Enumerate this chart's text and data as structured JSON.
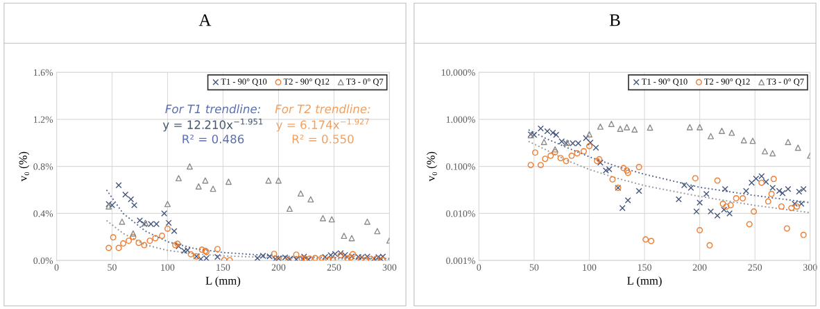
{
  "chart_data": [
    {
      "type": "scatter",
      "title": "A",
      "xlabel": "L (mm)",
      "ylabel": "v₀ (%)",
      "xlim": [
        0,
        300
      ],
      "xticks": [
        0,
        50,
        100,
        150,
        200,
        250,
        300
      ],
      "ylim": [
        0,
        1.6
      ],
      "yticks": [
        {
          "value": 0,
          "label": "0.0%"
        },
        {
          "value": 0.4,
          "label": "0.4%"
        },
        {
          "value": 0.8,
          "label": "0.8%"
        },
        {
          "value": 1.2,
          "label": "1.2%"
        },
        {
          "value": 1.6,
          "label": "1.6%"
        }
      ],
      "grid": true,
      "legend": "top right",
      "annotations": [
        "For T1 trendline:",
        "y = 12.210x$^{−1.951}$",
        "R² = 0.486",
        "For T2 trendline:",
        "y = 6.174x$^{−1.927}$",
        "R² = 0.550"
      ],
      "series": [
        {
          "name": "T1 - 90° Q10",
          "marker": "cross",
          "color": "#44547c",
          "x": [
            47,
            50,
            56,
            62,
            67,
            70,
            75,
            79,
            85,
            90,
            97,
            101,
            106,
            110,
            115,
            118,
            126,
            130,
            135,
            145,
            181,
            186,
            192,
            197,
            200,
            206,
            210,
            216,
            222,
            223,
            227,
            242,
            247,
            251,
            256,
            260,
            266,
            272,
            275,
            280,
            286,
            290,
            292,
            294
          ],
          "values": [
            0.48,
            0.47,
            0.64,
            0.56,
            0.52,
            0.47,
            0.34,
            0.31,
            0.31,
            0.31,
            0.4,
            0.32,
            0.25,
            0.12,
            0.082,
            0.087,
            0.035,
            0.013,
            0.019,
            0.03,
            0.02,
            0.04,
            0.035,
            0.011,
            0.017,
            0.026,
            0.011,
            0.009,
            0.012,
            0.033,
            0.01,
            0.03,
            0.045,
            0.055,
            0.062,
            0.047,
            0.035,
            0.03,
            0.027,
            0.033,
            0.016,
            0.029,
            0.016,
            0.033
          ]
        },
        {
          "name": "T2 - 90° Q12",
          "marker": "circle",
          "color": "#ed7d31",
          "x": [
            47,
            51,
            56,
            60,
            65,
            69,
            74,
            79,
            84,
            89,
            95,
            100,
            107,
            109,
            121,
            126,
            131,
            134,
            135,
            145,
            151,
            156,
            196,
            200,
            209,
            216,
            221,
            224,
            228,
            233,
            239,
            245,
            249,
            256,
            262,
            265,
            267,
            274,
            279,
            283,
            288,
            294
          ],
          "values": [
            0.107,
            0.197,
            0.107,
            0.145,
            0.168,
            0.2,
            0.15,
            0.13,
            0.168,
            0.19,
            0.21,
            0.27,
            0.13,
            0.142,
            0.053,
            0.035,
            0.092,
            0.082,
            0.073,
            0.097,
            0.0028,
            0.0026,
            0.056,
            0.0044,
            0.0021,
            0.05,
            0.016,
            0.014,
            0.015,
            0.021,
            0.021,
            0.0059,
            0.011,
            0.045,
            0.018,
            0.026,
            0.054,
            0.014,
            0.0048,
            0.013,
            0.014,
            0.0035
          ]
        },
        {
          "name": "T3 - 0° Q7",
          "marker": "triangle",
          "color": "#8c8c8c",
          "x": [
            47,
            59,
            69,
            80,
            100,
            110,
            120,
            128,
            134,
            141,
            155,
            191,
            200,
            210,
            220,
            229,
            240,
            248,
            259,
            266,
            280,
            289,
            300
          ],
          "values": [
            0.46,
            0.33,
            0.23,
            0.32,
            0.48,
            0.7,
            0.8,
            0.63,
            0.68,
            0.61,
            0.67,
            0.68,
            0.68,
            0.44,
            0.57,
            0.52,
            0.36,
            0.35,
            0.21,
            0.19,
            0.33,
            0.25,
            0.17
          ]
        },
        {
          "type": "line",
          "line_style": "dotted",
          "marker": "none",
          "color": "#5a6b96",
          "x": [
            45,
            60,
            80,
            100,
            125,
            150,
            200,
            250,
            300
          ],
          "values": [
            0.6,
            0.4,
            0.25,
            0.16,
            0.1,
            0.068,
            0.036,
            0.024,
            0.017
          ]
        },
        {
          "type": "line",
          "line_style": "dotted",
          "marker": "none",
          "color": "#9a9a9a",
          "x": [
            45,
            60,
            80,
            100,
            125,
            150,
            200,
            250,
            300
          ],
          "values": [
            0.34,
            0.23,
            0.133,
            0.086,
            0.056,
            0.039,
            0.023,
            0.0148,
            0.0104
          ]
        }
      ]
    },
    {
      "type": "scatter",
      "title": "B",
      "xlabel": "L (mm)",
      "ylabel": "v₀ (%)",
      "log": "y",
      "xlim": [
        0,
        300
      ],
      "xticks": [
        0,
        50,
        100,
        150,
        200,
        250,
        300
      ],
      "ylim": [
        0.001,
        10
      ],
      "yticks": [
        {
          "value": 0.001,
          "label": "0.001%"
        },
        {
          "value": 0.01,
          "label": "0.010%"
        },
        {
          "value": 0.1,
          "label": "0.100%"
        },
        {
          "value": 1,
          "label": "1.000%"
        },
        {
          "value": 10,
          "label": "10.000%"
        }
      ],
      "grid": true,
      "legend": "top right",
      "series": [
        {
          "name": "T1 - 90° Q10",
          "marker": "cross",
          "color": "#44547c",
          "x": [
            47,
            50,
            56,
            62,
            67,
            70,
            75,
            79,
            85,
            90,
            97,
            101,
            106,
            110,
            115,
            118,
            126,
            130,
            135,
            145,
            181,
            186,
            192,
            197,
            200,
            206,
            210,
            216,
            222,
            223,
            227,
            242,
            247,
            251,
            256,
            260,
            266,
            272,
            275,
            280,
            286,
            290,
            292,
            294
          ],
          "values": [
            0.48,
            0.47,
            0.64,
            0.56,
            0.52,
            0.47,
            0.34,
            0.31,
            0.31,
            0.31,
            0.4,
            0.32,
            0.25,
            0.12,
            0.082,
            0.087,
            0.035,
            0.013,
            0.019,
            0.03,
            0.02,
            0.04,
            0.035,
            0.011,
            0.017,
            0.026,
            0.011,
            0.009,
            0.012,
            0.033,
            0.01,
            0.03,
            0.045,
            0.055,
            0.062,
            0.047,
            0.035,
            0.03,
            0.027,
            0.033,
            0.016,
            0.029,
            0.016,
            0.033
          ]
        },
        {
          "name": "T2 - 90° Q12",
          "marker": "circle",
          "color": "#ed7d31",
          "x": [
            47,
            51,
            56,
            60,
            65,
            69,
            74,
            79,
            84,
            89,
            95,
            100,
            107,
            109,
            121,
            126,
            131,
            134,
            135,
            145,
            151,
            156,
            196,
            200,
            209,
            216,
            221,
            224,
            228,
            233,
            239,
            245,
            249,
            256,
            262,
            265,
            267,
            274,
            279,
            283,
            288,
            294
          ],
          "values": [
            0.107,
            0.197,
            0.107,
            0.145,
            0.168,
            0.2,
            0.15,
            0.13,
            0.168,
            0.19,
            0.21,
            0.27,
            0.13,
            0.142,
            0.053,
            0.035,
            0.092,
            0.082,
            0.073,
            0.097,
            0.0028,
            0.0026,
            0.056,
            0.0044,
            0.0021,
            0.05,
            0.016,
            0.014,
            0.015,
            0.021,
            0.021,
            0.0059,
            0.011,
            0.045,
            0.018,
            0.026,
            0.054,
            0.014,
            0.0048,
            0.013,
            0.014,
            0.0035
          ]
        },
        {
          "name": "T3 - 0° Q7",
          "marker": "triangle",
          "color": "#8c8c8c",
          "x": [
            47,
            59,
            69,
            80,
            100,
            110,
            120,
            128,
            134,
            141,
            155,
            191,
            200,
            210,
            220,
            229,
            240,
            248,
            259,
            266,
            280,
            289,
            300
          ],
          "values": [
            0.46,
            0.33,
            0.23,
            0.32,
            0.48,
            0.7,
            0.8,
            0.63,
            0.68,
            0.61,
            0.67,
            0.68,
            0.68,
            0.44,
            0.57,
            0.52,
            0.36,
            0.35,
            0.21,
            0.19,
            0.33,
            0.25,
            0.17
          ]
        },
        {
          "type": "line",
          "line_style": "dotted",
          "marker": "none",
          "color": "#5a6b96",
          "x": [
            45,
            60,
            80,
            100,
            125,
            150,
            200,
            250,
            300
          ],
          "values": [
            0.6,
            0.4,
            0.25,
            0.16,
            0.1,
            0.068,
            0.036,
            0.024,
            0.017
          ]
        },
        {
          "type": "line",
          "line_style": "dotted",
          "marker": "none",
          "color": "#9a9a9a",
          "x": [
            45,
            60,
            80,
            100,
            125,
            150,
            200,
            250,
            300
          ],
          "values": [
            0.34,
            0.23,
            0.133,
            0.086,
            0.056,
            0.039,
            0.023,
            0.0148,
            0.0104
          ]
        }
      ]
    }
  ]
}
